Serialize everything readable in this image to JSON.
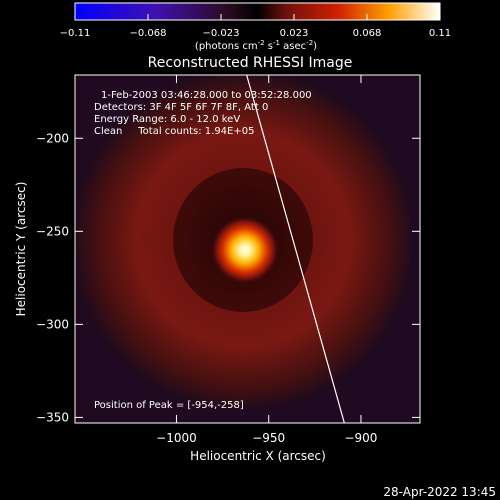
{
  "colorbar": {
    "ticks": [
      "-0.11",
      "-0.068",
      "-0.023",
      "0.023",
      "0.068",
      "0.11"
    ],
    "unit_main": "(photons cm",
    "unit_sup1": "-2",
    "unit_mid": " s",
    "unit_sup2": "-1",
    "unit_mid2": " asec",
    "unit_sup3": "-2",
    "unit_end": ")"
  },
  "chart_data": {
    "type": "heatmap",
    "title": "Reconstructed RHESSI Image",
    "xlabel": "Heliocentric X (arcsec)",
    "ylabel": "Heliocentric Y (arcsec)",
    "x_ticks": [
      -1000,
      -950,
      -900
    ],
    "y_ticks": [
      -200,
      -250,
      -300,
      -350
    ],
    "xlim": [
      -1055,
      -868
    ],
    "ylim": [
      -353,
      -166
    ],
    "peak": {
      "x": -954,
      "y": -258
    },
    "colorbar_range": [
      -0.11,
      0.11
    ],
    "annotations": [
      "1-Feb-2003 03:46:28.000 to 03:52:28.000",
      "Detectors: 3F 4F 5F 6F 7F 8F, Att 0",
      "Energy Range: 6.0 - 12.0 keV",
      "Clean     Total counts: 1.94E+05",
      "Position of Peak = [-954,-258]"
    ],
    "limb_line": [
      [
        -965,
        -166
      ],
      [
        -909,
        -353
      ]
    ]
  },
  "footer": {
    "date": "28-Apr-2022 13:45"
  }
}
